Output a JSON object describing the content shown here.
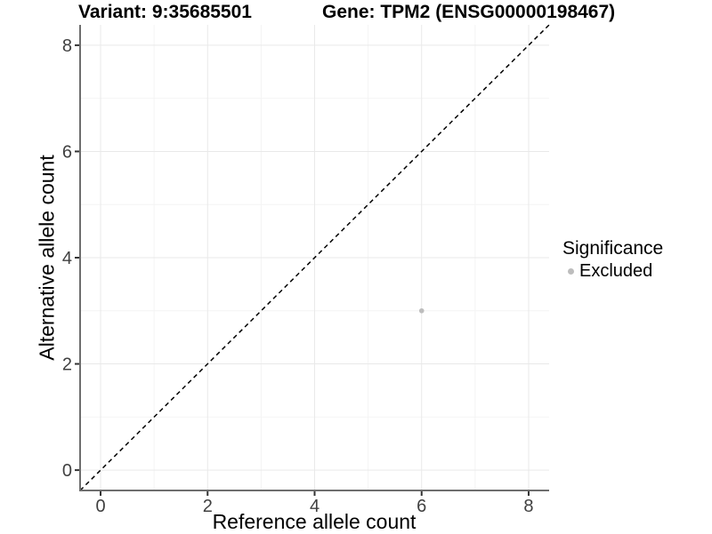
{
  "chart_data": {
    "type": "scatter",
    "title_left": "Variant: 9:35685501",
    "title_right": "Gene: TPM2 (ENSG00000198467)",
    "xlabel": "Reference allele count",
    "ylabel": "Alternative allele count",
    "xlim": [
      -0.383,
      8.383
    ],
    "ylim": [
      -0.383,
      8.383
    ],
    "x_ticks": [
      0,
      2,
      4,
      6,
      8
    ],
    "y_ticks": [
      0,
      2,
      4,
      6,
      8
    ],
    "x_minor_ticks": [
      1,
      3,
      5,
      7
    ],
    "y_minor_ticks": [
      1,
      3,
      5,
      7
    ],
    "grid": "on",
    "legend_position": "right",
    "identity_line": {
      "type": "dashed",
      "slope": 1,
      "intercept": 0,
      "color": "#000000"
    },
    "series": [
      {
        "name": "Excluded",
        "color": "#bdbdbd",
        "points": [
          {
            "x": 6,
            "y": 3
          }
        ]
      }
    ],
    "legend": {
      "title": "Significance",
      "items": [
        {
          "label": "Excluded",
          "color": "#bdbdbd"
        }
      ]
    }
  },
  "colors": {
    "background": "#ffffff",
    "grid_major": "#e9e9e9",
    "grid_minor": "#f4f4f4",
    "axis_line": "#6e6e6e",
    "tick_mark": "#333333",
    "tick_label": "#404040",
    "point": "#bdbdbd",
    "dashed_line": "#000000"
  }
}
